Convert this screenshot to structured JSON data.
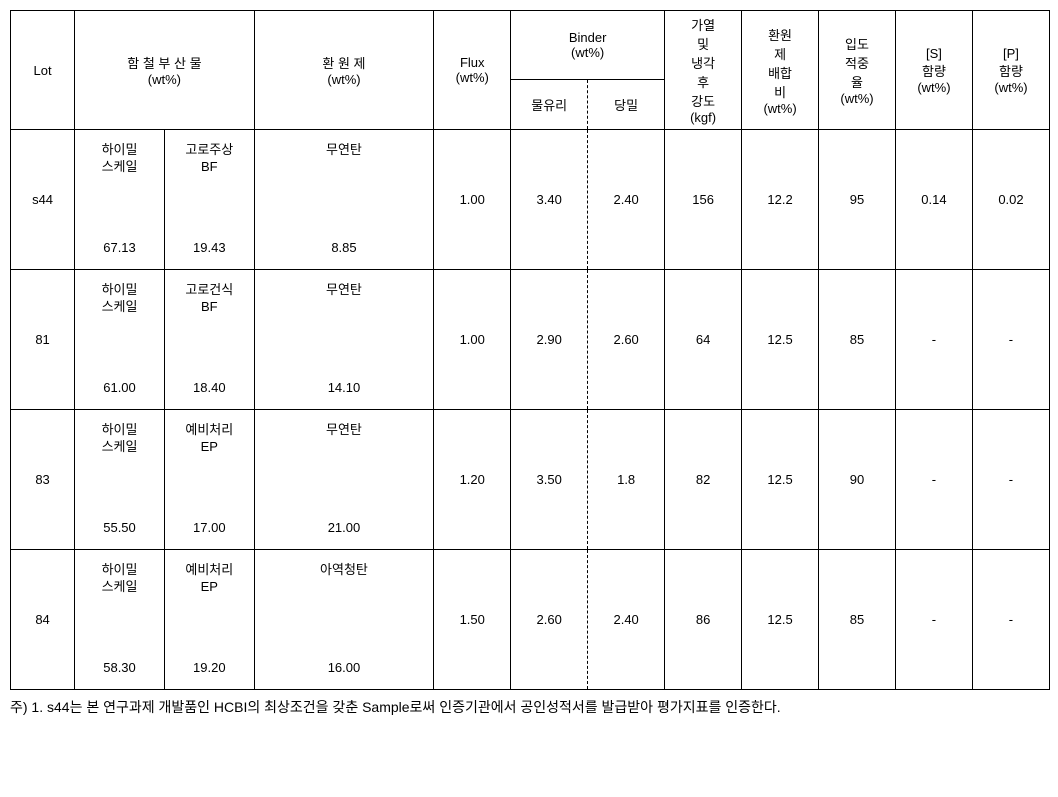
{
  "headers": {
    "lot": "Lot",
    "material": "함 철 부 산 물\n(wt%)",
    "reductant": "환 원 제\n(wt%)",
    "flux": "Flux\n(wt%)",
    "binder": "Binder\n(wt%)",
    "binder_sub1": "물유리",
    "binder_sub2": "당밀",
    "strength": "가열\n및\n냉각\n후\n강도\n(kgf)",
    "ratio": "환원\n제\n배합\n비\n(wt%)",
    "particle": "입도\n적중\n율\n(wt%)",
    "s_content": "[S]\n함량\n(wt%)",
    "p_content": "[P]\n함량\n(wt%)"
  },
  "rows": [
    {
      "lot": "s44",
      "mat1_name": "하이밀\n스케일",
      "mat1_val": "67.13",
      "mat2_name": "고로주상\nBF",
      "mat2_val": "19.43",
      "red_name": "무연탄",
      "red_val": "8.85",
      "flux": "1.00",
      "bind1": "3.40",
      "bind2": "2.40",
      "strength": "156",
      "ratio": "12.2",
      "particle": "95",
      "s": "0.14",
      "p": "0.02"
    },
    {
      "lot": "81",
      "mat1_name": "하이밀\n스케일",
      "mat1_val": "61.00",
      "mat2_name": "고로건식\nBF",
      "mat2_val": "18.40",
      "red_name": "무연탄",
      "red_val": "14.10",
      "flux": "1.00",
      "bind1": "2.90",
      "bind2": "2.60",
      "strength": "64",
      "ratio": "12.5",
      "particle": "85",
      "s": "-",
      "p": "-"
    },
    {
      "lot": "83",
      "mat1_name": "하이밀\n스케일",
      "mat1_val": "55.50",
      "mat2_name": "예비처리\nEP",
      "mat2_val": "17.00",
      "red_name": "무연탄",
      "red_val": "21.00",
      "flux": "1.20",
      "bind1": "3.50",
      "bind2": "1.8",
      "strength": "82",
      "ratio": "12.5",
      "particle": "90",
      "s": "-",
      "p": "-"
    },
    {
      "lot": "84",
      "mat1_name": "하이밀\n스케일",
      "mat1_val": "58.30",
      "mat2_name": "예비처리\nEP",
      "mat2_val": "19.20",
      "red_name": "아역청탄",
      "red_val": "16.00",
      "flux": "1.50",
      "bind1": "2.60",
      "bind2": "2.40",
      "strength": "86",
      "ratio": "12.5",
      "particle": "85",
      "s": "-",
      "p": "-"
    }
  ],
  "footnote": "주) 1. s44는 본 연구과제 개발품인 HCBI의 최상조건을 갖춘 Sample로써 인증기관에서 공인성적서를 발급받아 평가지표를 인증한다."
}
